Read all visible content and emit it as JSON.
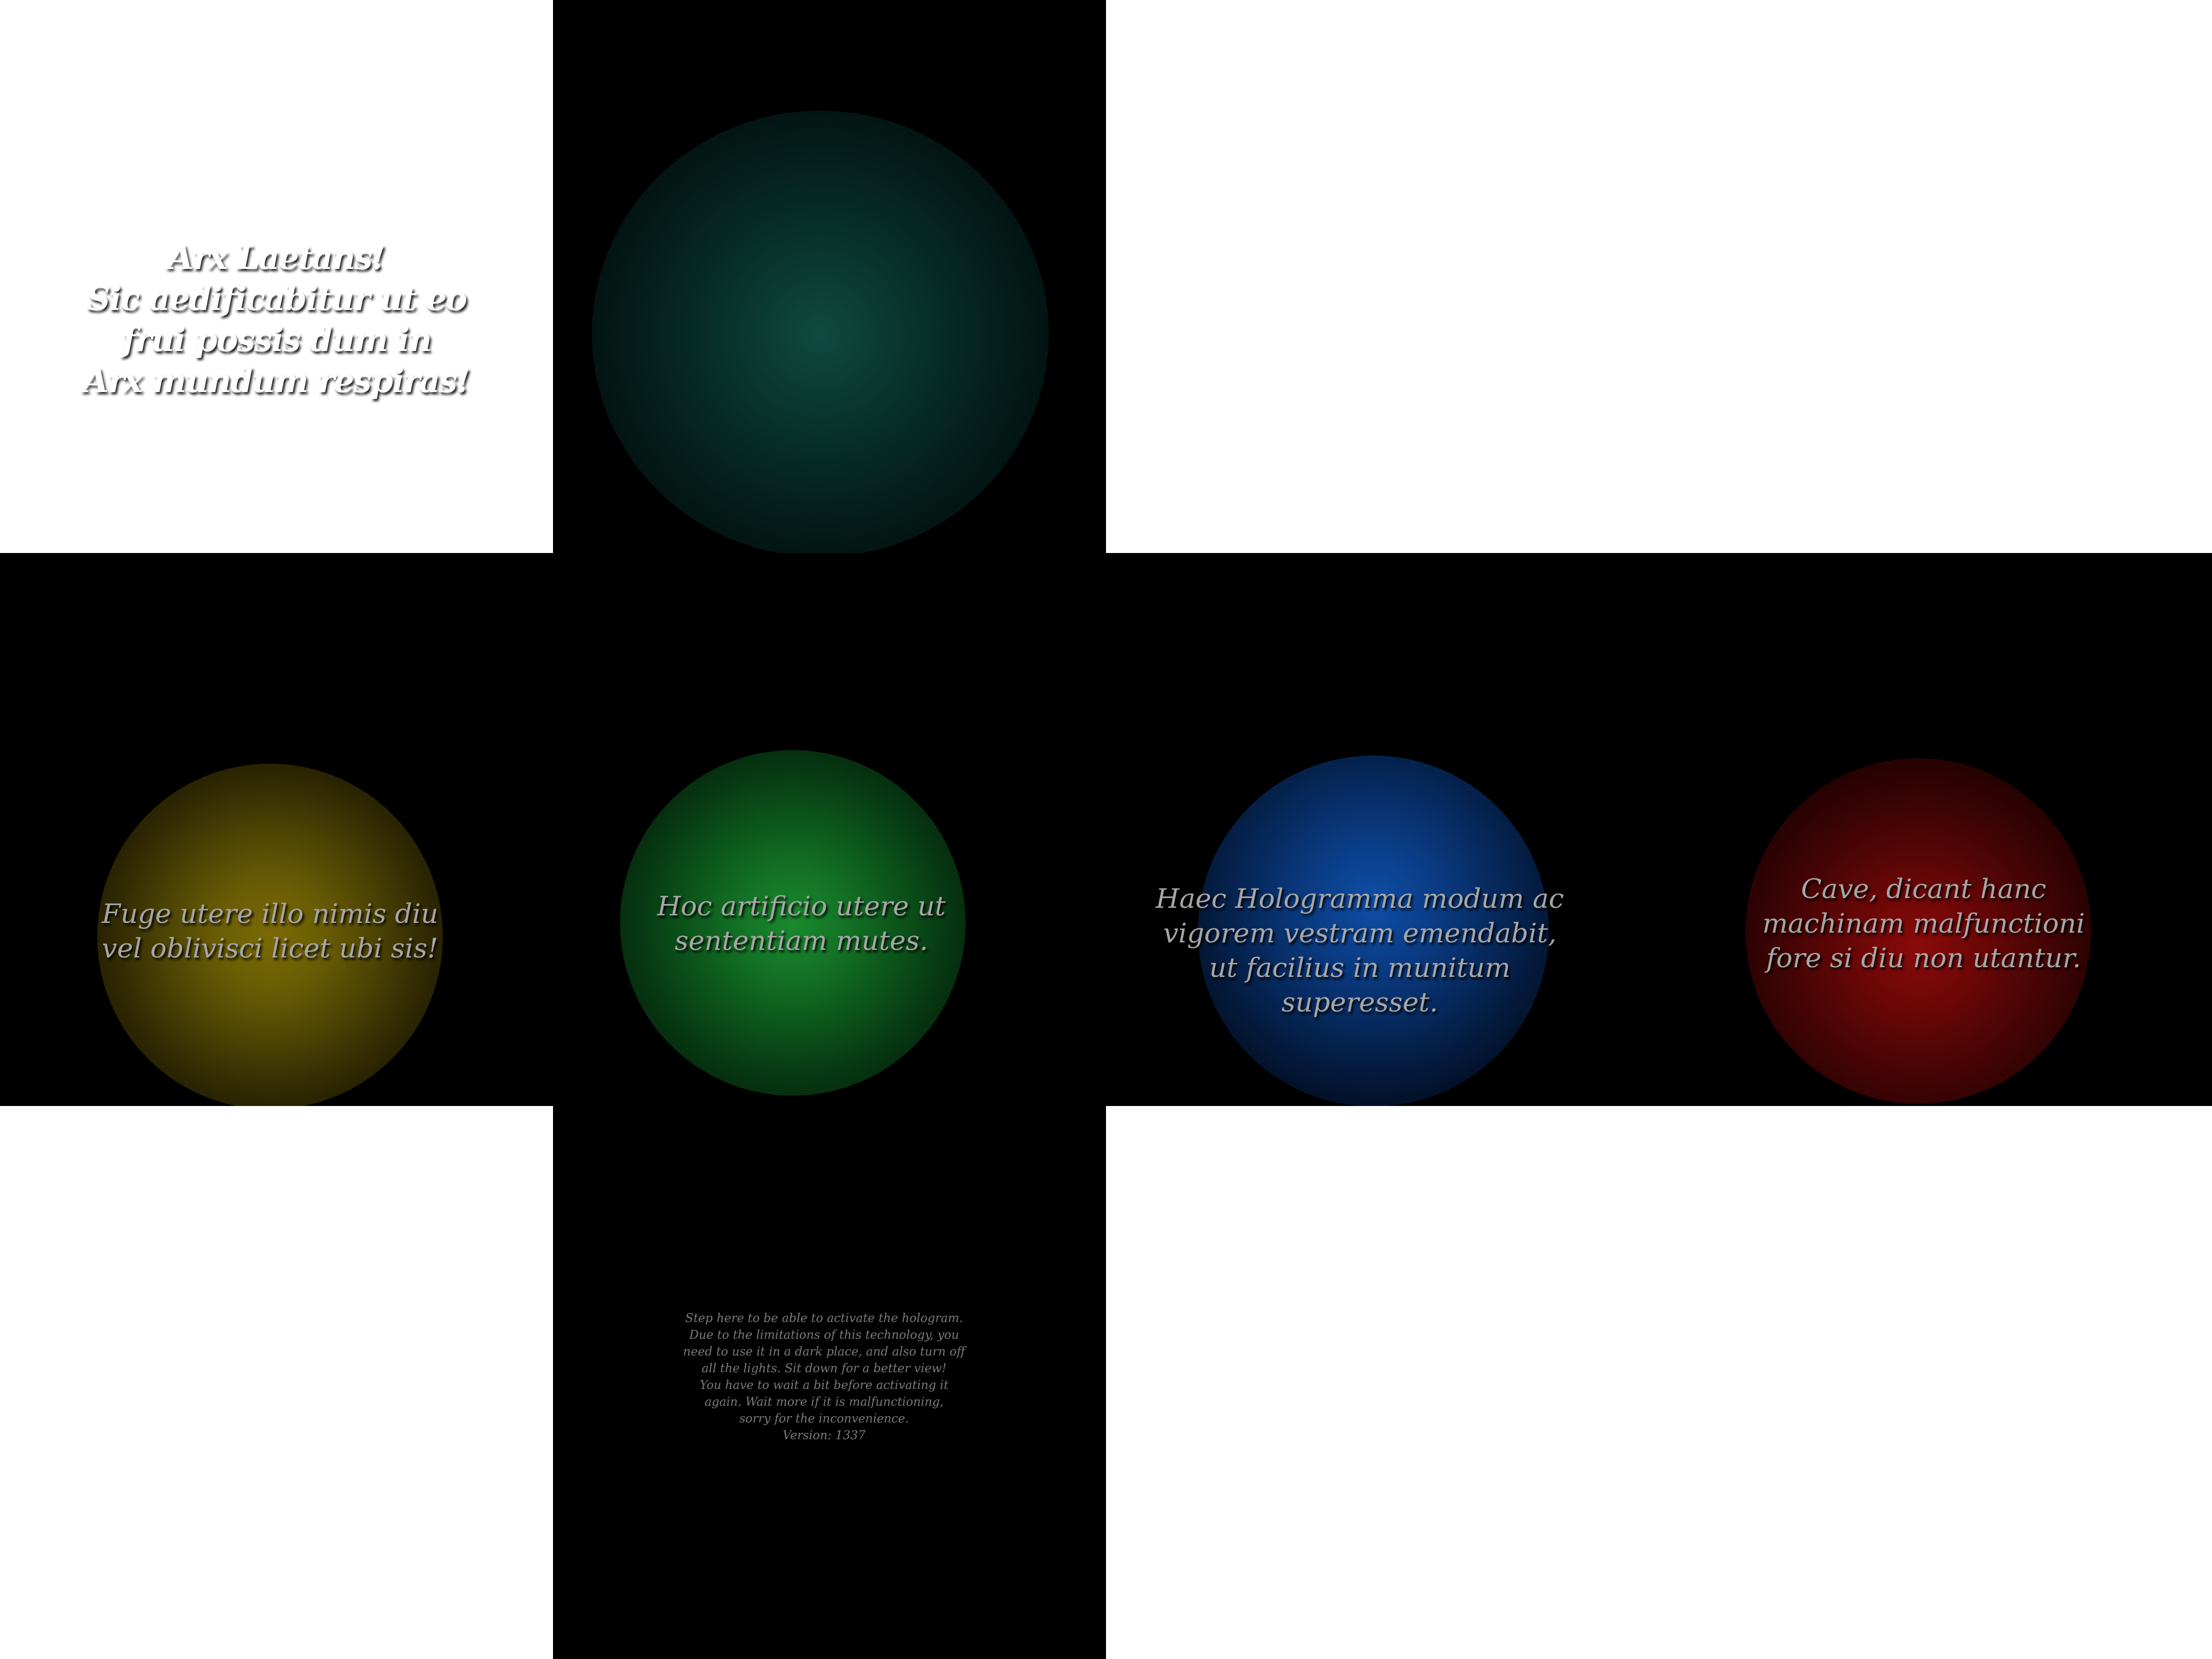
{
  "faces": {
    "top": {
      "text": "Arx Laetans!\nSic aedificabitur ut eo\nfrui possis dum in\nArx mundum respiras!"
    },
    "left": {
      "text": "Fuge utere illo nimis diu\nvel oblivisci licet ubi sis!"
    },
    "front": {
      "text": "Hoc artificio utere ut\nsententiam mutes."
    },
    "right": {
      "text": "Haec Hologramma modum ac\nvigorem vestram emendabit,\nut facilius in munitum superesset."
    },
    "back": {
      "text": "Cave, dicant hanc\nmachinam malfunctioni\nfore si diu non utantur."
    },
    "bottom": {
      "text": "Step here to be able to activate the hologram.\nDue to the limitations of this technology, you\nneed to use it in a dark place, and also turn off\nall the lights. Sit down for a better view!\nYou have to wait a bit before activating it\nagain. Wait more if it is malfunctioning,\nsorry for the inconvenience.\nVersion: 1337"
    }
  },
  "colors": {
    "background": "#ffffff",
    "face": "#000000",
    "teal_glow": "#0e4a3f",
    "yellow_glow": "#7a6a05",
    "green_glow": "#1a8a2e",
    "blue_glow": "#0f4ea6",
    "red_glow": "#8a0a0a",
    "title_text": "#ffffff",
    "glow_text": "#a6a6a6",
    "small_text": "#7a7a7a"
  }
}
